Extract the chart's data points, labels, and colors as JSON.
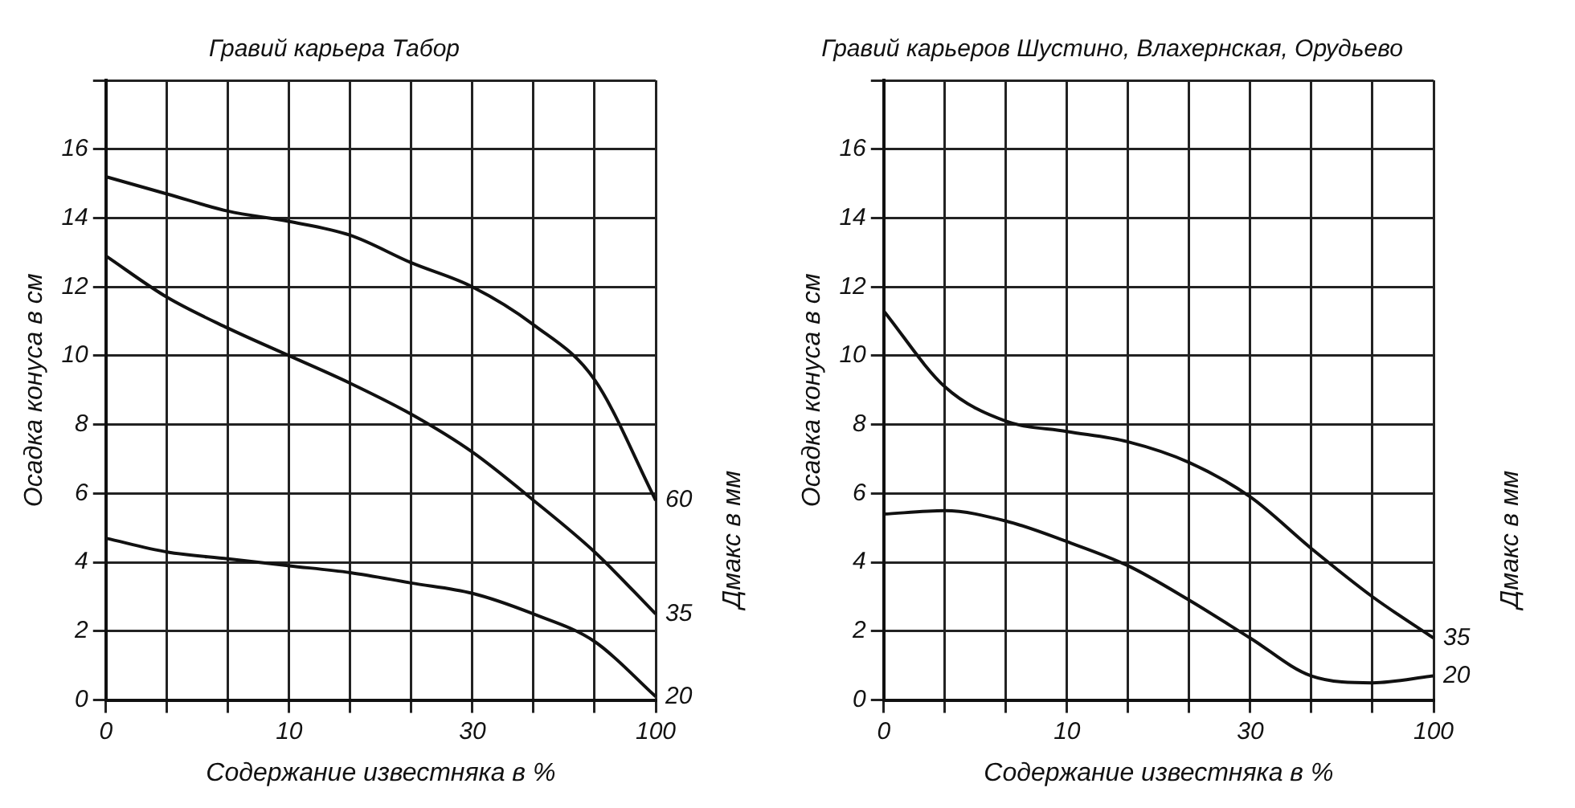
{
  "chart_data": [
    {
      "type": "line",
      "title": "Гравий карьера Табор",
      "xlabel": "Содержание известняка в %",
      "ylabel": "Осадка конуса в см",
      "legend_title": "Дмакс в мм",
      "categories": [
        "0",
        null,
        null,
        "10",
        null,
        null,
        "30",
        null,
        null,
        "100"
      ],
      "ylim": [
        0,
        18
      ],
      "yticks": [
        0,
        2,
        4,
        6,
        8,
        10,
        12,
        14,
        16,
        {
          "value": 18,
          "label": null
        }
      ],
      "grid": true,
      "legend": false,
      "marker": "none",
      "line_style": "solid",
      "series": [
        {
          "name": "60",
          "color": "#111111",
          "values": [
            15.2,
            14.7,
            14.2,
            13.9,
            13.5,
            12.7,
            12.0,
            10.9,
            9.3,
            5.8
          ]
        },
        {
          "name": "35",
          "color": "#111111",
          "values": [
            12.9,
            11.7,
            10.8,
            10.0,
            9.2,
            8.3,
            7.2,
            5.8,
            4.3,
            2.5
          ]
        },
        {
          "name": "20",
          "color": "#111111",
          "values": [
            4.7,
            4.3,
            4.1,
            3.9,
            3.7,
            3.4,
            3.1,
            2.5,
            1.7,
            0.1
          ]
        }
      ]
    },
    {
      "type": "line",
      "title": "Гравий карьеров Шустино, Влахернская, Орудьево",
      "xlabel": "Содержание известняка в %",
      "ylabel": "Осадка конуса в см",
      "legend_title": "Дмакс в мм",
      "categories": [
        "0",
        null,
        null,
        "10",
        null,
        null,
        "30",
        null,
        null,
        "100"
      ],
      "ylim": [
        0,
        18
      ],
      "yticks": [
        0,
        2,
        4,
        6,
        8,
        10,
        12,
        14,
        16,
        {
          "value": 18,
          "label": null
        }
      ],
      "grid": true,
      "legend": false,
      "marker": "none",
      "line_style": "solid",
      "series": [
        {
          "name": "35",
          "color": "#111111",
          "values": [
            11.3,
            9.1,
            8.1,
            7.8,
            7.5,
            6.9,
            5.9,
            4.4,
            3.0,
            1.8
          ]
        },
        {
          "name": "20",
          "color": "#111111",
          "values": [
            5.4,
            5.5,
            5.2,
            4.6,
            3.9,
            2.9,
            1.8,
            0.7,
            0.5,
            0.7
          ]
        }
      ]
    }
  ]
}
